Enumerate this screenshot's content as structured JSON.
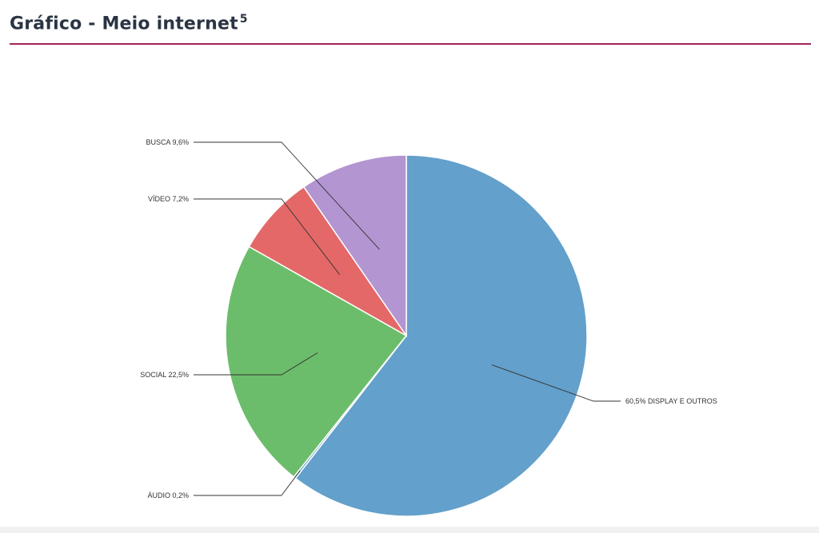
{
  "header": {
    "title": "Gráfico - Meio internet",
    "footnote_ref": "5"
  },
  "colors": {
    "title": "#2b3443",
    "rule": "#a3245a",
    "slice_stroke": "#ffffff",
    "leader_line": "#333333"
  },
  "chart_data": {
    "type": "pie",
    "slices": [
      {
        "label": "DISPLAY E OUTROS",
        "value": 60.5,
        "display": "60,5%",
        "color": "#63a0cb",
        "label_text": "60,5% DISPLAY E OUTROS"
      },
      {
        "label": "ÁUDIO",
        "value": 0.2,
        "display": "0,2%",
        "color": "#63a0cb",
        "label_text": "ÁUDIO  0,2%"
      },
      {
        "label": "SOCIAL",
        "value": 22.5,
        "display": "22,5%",
        "color": "#6cbd6b",
        "label_text": "SOCIAL 22,5%"
      },
      {
        "label": "VÍDEO",
        "value": 7.2,
        "display": "7,2%",
        "color": "#e46868",
        "label_text": "VÍDEO  7,2%"
      },
      {
        "label": "BUSCA",
        "value": 9.6,
        "display": "9,6%",
        "color": "#b395d1",
        "label_text": "BUSCA  9,6%"
      }
    ]
  }
}
